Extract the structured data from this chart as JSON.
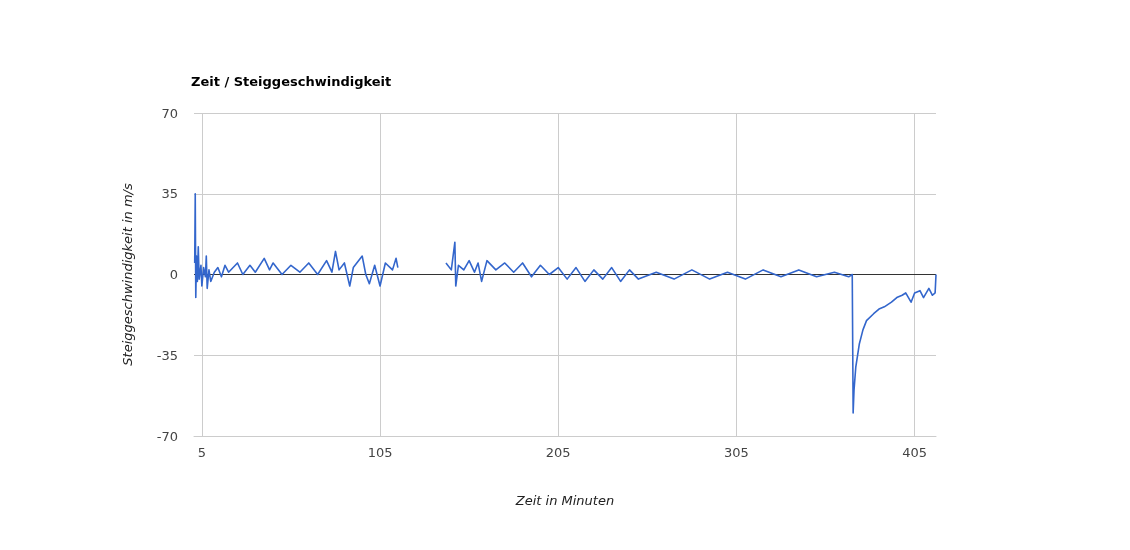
{
  "chart_data": {
    "type": "line",
    "title": "Zeit / Steiggeschwindigkeit",
    "xlabel": "Zeit in Minuten",
    "ylabel": "Steiggeschwindigkeit in m/s",
    "xlim": [
      0.6,
      417
    ],
    "xticks": [
      5,
      105,
      205,
      305,
      405
    ],
    "ylim": [
      -70,
      70
    ],
    "yticks": [
      -70,
      -35,
      0,
      35,
      70
    ],
    "grid": true,
    "marker": "none",
    "line_style": "solid",
    "series": [
      {
        "color": "#3366cc",
        "x": [
          1,
          1.3,
          1.6,
          2,
          2.5,
          3,
          3.5,
          4.5,
          5,
          6,
          7,
          7.5,
          8,
          9,
          10,
          12,
          14,
          16,
          18,
          20,
          25,
          28,
          32,
          35,
          40,
          43,
          45,
          50,
          55,
          60,
          65,
          70,
          75,
          78,
          80,
          82,
          85,
          88,
          90,
          95,
          97,
          99,
          102,
          105,
          108,
          112,
          114,
          115,
          116,
          142,
          145,
          147,
          147.5,
          149,
          152,
          155,
          158,
          160,
          162,
          165,
          170,
          175,
          180,
          185,
          190,
          195,
          200,
          205,
          210,
          215,
          220,
          225,
          230,
          235,
          240,
          245,
          250,
          260,
          270,
          280,
          290,
          300,
          310,
          320,
          330,
          340,
          350,
          360,
          368,
          370,
          370.5,
          371,
          372,
          374,
          376,
          378,
          382,
          385,
          388,
          392,
          395,
          398,
          400,
          403,
          405,
          408,
          410,
          413,
          415,
          416.5,
          417
        ],
        "values": [
          5,
          35,
          -10,
          8,
          -3,
          12,
          -2,
          4,
          -5,
          3,
          -1,
          8,
          -6,
          2,
          -3,
          1,
          3,
          -1,
          4,
          1,
          5,
          0,
          4,
          1,
          7,
          2,
          5,
          0,
          4,
          1,
          5,
          0,
          6,
          1,
          10,
          2,
          5,
          -5,
          3,
          8,
          0,
          -4,
          4,
          -5,
          5,
          2,
          7,
          3,
          null,
          5,
          2,
          14,
          -5,
          4,
          2,
          6,
          1,
          5,
          -3,
          6,
          2,
          5,
          1,
          5,
          -1,
          4,
          0,
          3,
          -2,
          3,
          -3,
          2,
          -2,
          3,
          -3,
          2,
          -2,
          1,
          -2,
          2,
          -2,
          1,
          -2,
          2,
          -1,
          2,
          -1,
          1,
          -1,
          0,
          -60,
          -50,
          -40,
          -30,
          -24,
          -20,
          -17,
          -15,
          -14,
          -12,
          -10,
          -9,
          -8,
          -12,
          -8,
          -7,
          -10,
          -6,
          -9,
          -8,
          0
        ]
      }
    ]
  }
}
